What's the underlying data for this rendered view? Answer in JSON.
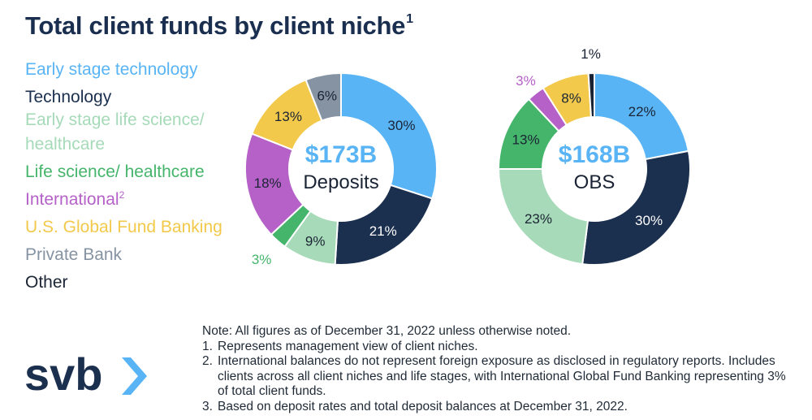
{
  "header": {
    "title": "Total client funds by client niche",
    "title_sup": "1"
  },
  "legend": {
    "items": [
      {
        "label": "Early stage technology",
        "sup": "",
        "color": "#59b4f5"
      },
      {
        "label": "Technology",
        "sup": "",
        "color": "#1b2f4e"
      },
      {
        "label": "Early stage life science/ healthcare",
        "sup": "",
        "color": "#a6dab8"
      },
      {
        "label": "Life science/ healthcare",
        "sup": "",
        "color": "#45b56b"
      },
      {
        "label": "International",
        "sup": "2",
        "color": "#b561c8"
      },
      {
        "label": "U.S. Global Fund Banking",
        "sup": "",
        "color": "#f2c94a"
      },
      {
        "label": "Private Bank",
        "sup": "",
        "color": "#8593a3"
      },
      {
        "label": "Other",
        "sup": "",
        "color": "#1b2434"
      }
    ]
  },
  "chart_data": [
    {
      "type": "pie",
      "donut": true,
      "center_value": "$173B",
      "center_label": "Deposits",
      "categories": [
        "Early stage technology",
        "Technology",
        "Early stage life science/ healthcare",
        "Life science/ healthcare",
        "International",
        "U.S. Global Fund Banking",
        "Private Bank"
      ],
      "values": [
        30,
        21,
        9,
        3,
        18,
        13,
        6
      ],
      "labels": [
        "30%",
        "21%",
        "9%",
        "3%",
        "18%",
        "13%",
        "6%"
      ]
    },
    {
      "type": "pie",
      "donut": true,
      "center_value": "$168B",
      "center_label": "OBS",
      "categories": [
        "Early stage technology",
        "Technology",
        "Early stage life science/ healthcare",
        "Life science/ healthcare",
        "International",
        "U.S. Global Fund Banking",
        "Other"
      ],
      "values": [
        22,
        30,
        23,
        13,
        3,
        8,
        1
      ],
      "labels": [
        "22%",
        "30%",
        "23%",
        "13%",
        "3%",
        "8%",
        "1%"
      ]
    }
  ],
  "notes": {
    "intro": "Note: All figures as of December 31, 2022 unless otherwise noted.",
    "items": [
      {
        "num": "1.",
        "text": "Represents management view of client niches."
      },
      {
        "num": "2.",
        "text": "International balances do not represent foreign exposure as disclosed in regulatory reports. Includes clients across all client niches and life stages, with International Global Fund Banking representing 3% of total client funds."
      },
      {
        "num": "3.",
        "text": "Based on deposit rates and total deposit balances at December 31, 2022."
      }
    ]
  },
  "logo": {
    "text": "svb",
    "color": "#1b2f4e",
    "chevron_color": "#59b4f5"
  }
}
